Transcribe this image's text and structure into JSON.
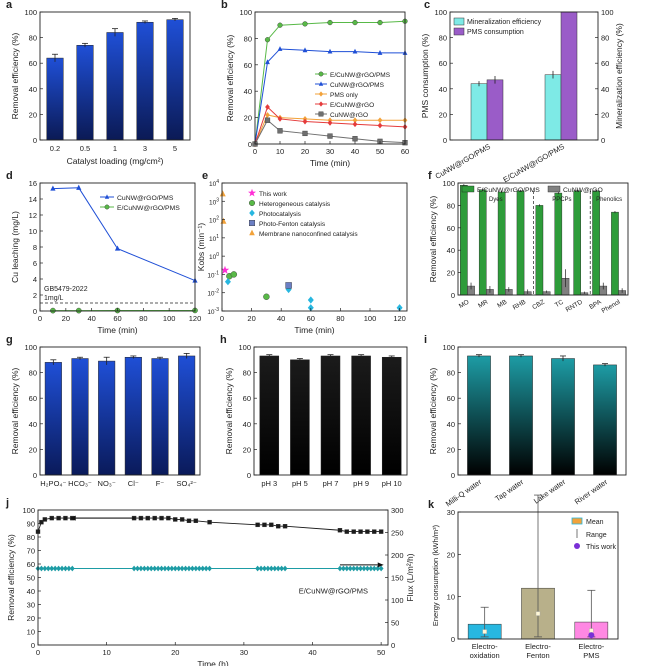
{
  "colors": {
    "blue": "#1f4fd6",
    "green": "#58b947",
    "cyan": "#27b7e0",
    "orange": "#f2a23a",
    "red": "#e53b3b",
    "gray": "#6f6f6f",
    "black": "#1b1b1b",
    "magenta": "#ff2fd6",
    "teal": "#1d9ca5",
    "mint": "#7eeae6",
    "purple": "#9a5cc8",
    "pink": "#ff88e3",
    "olive": "#b8b08a"
  },
  "chart_data": [
    {
      "id": "a",
      "panel_label": "a",
      "type": "bar",
      "xlabel": "Catalyst loading (mg/cm²)",
      "ylabel": "Removal efficiency (%)",
      "ylim": [
        0,
        100
      ],
      "yticks": [
        0,
        20,
        40,
        60,
        80,
        100
      ],
      "categories": [
        "0.2",
        "0.5",
        "1",
        "3",
        "5"
      ],
      "values": [
        64,
        74,
        84,
        92,
        94
      ],
      "errors": [
        3,
        1.5,
        3,
        1,
        1
      ],
      "colors": [
        "#1f4fd6"
      ]
    },
    {
      "id": "b",
      "panel_label": "b",
      "type": "line",
      "xlabel": "Time (min)",
      "ylabel": "Removal efficiency (%)",
      "xlim": [
        0,
        60
      ],
      "ylim": [
        0,
        100
      ],
      "xticks": [
        0,
        10,
        20,
        30,
        40,
        50,
        60
      ],
      "yticks": [
        0,
        20,
        40,
        60,
        80,
        100
      ],
      "legend": "center-right",
      "series": [
        {
          "name": "E/CuNW@rGO/PMS",
          "x": [
            0,
            5,
            10,
            20,
            30,
            40,
            50,
            60
          ],
          "y": [
            0,
            79,
            90,
            91,
            92,
            92,
            92,
            93
          ],
          "color": "#58b947",
          "marker": "circle"
        },
        {
          "name": "CuNW@rGO/PMS",
          "x": [
            0,
            5,
            10,
            20,
            30,
            40,
            50,
            60
          ],
          "y": [
            0,
            62,
            72,
            71,
            70,
            70,
            69,
            69
          ],
          "color": "#1f4fd6",
          "marker": "triangle"
        },
        {
          "name": "PMS only",
          "x": [
            0,
            5,
            10,
            20,
            30,
            40,
            50,
            60
          ],
          "y": [
            0,
            22,
            20,
            19,
            18,
            18,
            18,
            18
          ],
          "color": "#f2a23a",
          "marker": "diamond"
        },
        {
          "name": "E/CuNW@rGO",
          "x": [
            0,
            5,
            10,
            20,
            30,
            40,
            50,
            60
          ],
          "y": [
            0,
            28,
            19,
            17,
            16,
            15,
            14,
            13
          ],
          "color": "#e53b3b",
          "marker": "diamond"
        },
        {
          "name": "CuNW@rGO",
          "x": [
            0,
            5,
            10,
            20,
            30,
            40,
            50,
            60
          ],
          "y": [
            0,
            18,
            10,
            8,
            6,
            4,
            2,
            1
          ],
          "color": "#6f6f6f",
          "marker": "square"
        }
      ]
    },
    {
      "id": "c",
      "panel_label": "c",
      "type": "bar",
      "ylabel": "PMS consumption (%)",
      "ylabel_right": "Mineralization efficiency (%)",
      "ylim": [
        0,
        100
      ],
      "yticks": [
        0,
        20,
        40,
        60,
        80,
        100
      ],
      "categories": [
        "CuNW@rGO/PMS",
        "E/CuNW@rGO/PMS"
      ],
      "series": [
        {
          "name": "Mineralization efficiency",
          "values": [
            44,
            51
          ],
          "errors": [
            2,
            3
          ],
          "color": "#7eeae6"
        },
        {
          "name": "PMS consumption",
          "values": [
            47,
            100
          ],
          "errors": [
            3,
            0
          ],
          "color": "#9a5cc8"
        }
      ],
      "legend": "top-left"
    },
    {
      "id": "d",
      "panel_label": "d",
      "type": "line",
      "xlabel": "Time (min)",
      "ylabel": "Cu leaching (mg/L)",
      "xlim": [
        0,
        120
      ],
      "ylim": [
        0,
        16
      ],
      "xticks": [
        0,
        20,
        40,
        60,
        80,
        100,
        120
      ],
      "yticks": [
        0,
        2,
        4,
        6,
        8,
        10,
        12,
        14,
        16
      ],
      "legend": "top-right",
      "series": [
        {
          "name": "CuNW@rGO/PMS",
          "x": [
            10,
            30,
            60,
            120
          ],
          "y": [
            15.3,
            15.4,
            7.8,
            3.8
          ],
          "color": "#1f4fd6",
          "marker": "triangle"
        },
        {
          "name": "E/CuNW@rGO/PMS",
          "x": [
            10,
            30,
            60,
            120
          ],
          "y": [
            0.05,
            0.05,
            0.06,
            0.07
          ],
          "color": "#58b947",
          "marker": "circle"
        }
      ],
      "reference_line": {
        "y": 1,
        "label_1": "GB5479-2022",
        "label_2": "1mg/L"
      }
    },
    {
      "id": "e",
      "panel_label": "e",
      "type": "scatter",
      "xlabel": "Time (min)",
      "ylabel": "Kobs (min⁻¹)",
      "xlim": [
        0,
        125
      ],
      "log_y": true,
      "ylim_exp": [
        -3,
        4
      ],
      "xticks": [
        0,
        20,
        40,
        60,
        80,
        100,
        120
      ],
      "ytick_exponents": [
        -3,
        -2,
        -1,
        0,
        1,
        2,
        3,
        4
      ],
      "legend": "top-right",
      "series": [
        {
          "name": "This work",
          "x": [
            2
          ],
          "y": [
            0.17
          ],
          "color": "#ff2fd6",
          "marker": "star"
        },
        {
          "name": "Heterogeneous catalysis",
          "x": [
            5,
            8,
            30
          ],
          "y": [
            0.08,
            0.1,
            0.006
          ],
          "color": "#58b947",
          "marker": "circle"
        },
        {
          "name": "Photocatalysis",
          "x": [
            4,
            45,
            60,
            60,
            120
          ],
          "y": [
            0.04,
            0.015,
            0.0015,
            0.004,
            0.0015
          ],
          "color": "#27b7e0",
          "marker": "diamond"
        },
        {
          "name": "Photo-Fenton catalysis",
          "x": [
            45
          ],
          "y": [
            0.025
          ],
          "color": "#6b7fc4",
          "marker": "square"
        },
        {
          "name": "Membrane nanoconfined catalysis",
          "x": [
            0.5,
            1
          ],
          "y": [
            2500,
            80
          ],
          "color": "#f2a23a",
          "marker": "triangle"
        }
      ]
    },
    {
      "id": "f",
      "panel_label": "f",
      "type": "bar",
      "ylabel": "Removal efficiency (%)",
      "ylim": [
        0,
        100
      ],
      "yticks": [
        0,
        20,
        40,
        60,
        80,
        100
      ],
      "categories": [
        "MO",
        "MR",
        "MB",
        "RHB",
        "CBZ",
        "TC",
        "RNTD",
        "BPA",
        "Phenol"
      ],
      "series": [
        {
          "name": "E/CuNW@rGO/PMS",
          "values": [
            98,
            94,
            92,
            93,
            80,
            91,
            93,
            93,
            74
          ],
          "errors": [
            1,
            1,
            1,
            1,
            1,
            1,
            1,
            1,
            1
          ],
          "color": "#2e9c3a"
        },
        {
          "name": "CuNW@rGO",
          "values": [
            8,
            5,
            5,
            3,
            3,
            15,
            2,
            8,
            4
          ],
          "errors": [
            3,
            3,
            2,
            2,
            1,
            8,
            1,
            3,
            2
          ],
          "color": "#808080"
        }
      ],
      "groups": [
        {
          "label": "Dyes",
          "span": [
            0,
            3
          ]
        },
        {
          "label": "PPCPs",
          "span": [
            4,
            6
          ]
        },
        {
          "label": "Phenolics",
          "span": [
            7,
            8
          ]
        }
      ],
      "legend": "top"
    },
    {
      "id": "g",
      "panel_label": "g",
      "type": "bar",
      "ylabel": "Removal efficiency (%)",
      "ylim": [
        0,
        100
      ],
      "yticks": [
        0,
        20,
        40,
        60,
        80,
        100
      ],
      "categories": [
        "H₂PO₄⁻",
        "HCO₃⁻",
        "NO₃⁻",
        "Cl⁻",
        "F⁻",
        "SO₄²⁻"
      ],
      "values": [
        88,
        91,
        89,
        92,
        91,
        93
      ],
      "errors": [
        2,
        1,
        3,
        1,
        1,
        2
      ],
      "colors": [
        "#1f4fd6"
      ]
    },
    {
      "id": "h",
      "panel_label": "h",
      "type": "bar",
      "ylabel": "Removal efficiency (%)",
      "ylim": [
        0,
        100
      ],
      "yticks": [
        0,
        20,
        40,
        60,
        80,
        100
      ],
      "categories": [
        "pH 3",
        "pH 5",
        "pH 7",
        "pH 9",
        "pH 10"
      ],
      "values": [
        93,
        90,
        93,
        93,
        92
      ],
      "errors": [
        1,
        1,
        1,
        1,
        1
      ],
      "colors": [
        "#1b1b1b"
      ]
    },
    {
      "id": "i",
      "panel_label": "i",
      "type": "bar",
      "ylabel": "Removal efficiency (%)",
      "ylim": [
        0,
        100
      ],
      "yticks": [
        0,
        20,
        40,
        60,
        80,
        100
      ],
      "categories": [
        "Milli-Q water",
        "Tap water",
        "Lake water",
        "River water"
      ],
      "values": [
        93,
        93,
        91,
        86
      ],
      "errors": [
        1,
        1,
        2,
        1
      ],
      "colors": [
        "#1d9ca5"
      ]
    },
    {
      "id": "j",
      "panel_label": "j",
      "type": "line",
      "xlabel": "Time (h)",
      "ylabel": "Removal efficiency (%)",
      "ylabel_right": "Flux (L/m²/h)",
      "xlim": [
        0,
        51
      ],
      "ylim": [
        0,
        100
      ],
      "ylim_right": [
        0,
        300
      ],
      "xticks": [
        0,
        10,
        20,
        30,
        40,
        50
      ],
      "yticks": [
        0,
        10,
        20,
        30,
        40,
        50,
        60,
        70,
        80,
        90,
        100
      ],
      "yticks_right": [
        0,
        50,
        100,
        150,
        200,
        250,
        300
      ],
      "annotation": "E/CuNW@rGO/PMS",
      "series": [
        {
          "name": "Removal efficiency",
          "axis": "left",
          "x": [
            0,
            0.5,
            1,
            2,
            3,
            4,
            5,
            14,
            15,
            16,
            17,
            18,
            19,
            20,
            21,
            22,
            23,
            25,
            32,
            33,
            34,
            35,
            36,
            44,
            45,
            46,
            47,
            48,
            49,
            50
          ],
          "y": [
            84,
            91,
            93,
            94,
            94,
            94,
            94,
            94,
            94,
            94,
            94,
            94,
            94,
            93,
            93,
            92,
            92,
            91,
            89,
            89,
            89,
            88,
            88,
            85,
            84,
            84,
            84,
            84,
            84,
            84
          ],
          "color": "#1b1b1b",
          "marker": "square"
        },
        {
          "name": "Flux",
          "axis": "right",
          "x": [
            0,
            0.5,
            1,
            1.5,
            2,
            2.5,
            3,
            3.5,
            4,
            4.5,
            5,
            14,
            14.5,
            15,
            15.5,
            16,
            16.5,
            17,
            17.5,
            18,
            18.5,
            19,
            19.5,
            20,
            20.5,
            21,
            21.5,
            22,
            22.5,
            23,
            23.5,
            24,
            24.5,
            25,
            32,
            32.5,
            33,
            33.5,
            34,
            34.5,
            35,
            35.5,
            36,
            44,
            44.5,
            45,
            45.5,
            46,
            46.5,
            47,
            47.5,
            48,
            48.5,
            49,
            49.5,
            50
          ],
          "y": [
            170,
            170,
            170,
            170,
            170,
            170,
            170,
            170,
            170,
            170,
            170,
            170,
            170,
            170,
            170,
            170,
            170,
            170,
            170,
            170,
            170,
            170,
            170,
            170,
            170,
            170,
            170,
            170,
            170,
            170,
            170,
            170,
            170,
            170,
            170,
            170,
            170,
            170,
            170,
            170,
            170,
            170,
            170,
            170,
            170,
            170,
            170,
            170,
            170,
            170,
            170,
            170,
            170,
            170,
            170,
            170
          ],
          "color": "#1d9ca5",
          "marker": "diamond"
        }
      ]
    },
    {
      "id": "k",
      "panel_label": "k",
      "type": "bar",
      "ylabel": "Energy consumption (kWh/m³)",
      "ylim": [
        0,
        30
      ],
      "yticks": [
        0,
        10,
        20,
        30
      ],
      "categories": [
        "Electro-\noxidation",
        "Electro-\nFenton",
        "Electro-\nPMS"
      ],
      "values": [
        3.5,
        12,
        4
      ],
      "range": [
        [
          0.5,
          7.5
        ],
        [
          0.5,
          34
        ],
        [
          0.5,
          11.5
        ]
      ],
      "colors": [
        "#27b7e0",
        "#b8b08a",
        "#ff88e3"
      ],
      "this_work": {
        "category": 2,
        "value": 0.9
      },
      "legend_items": [
        "Mean",
        "Range",
        "This work"
      ],
      "legend": "top-right"
    }
  ]
}
